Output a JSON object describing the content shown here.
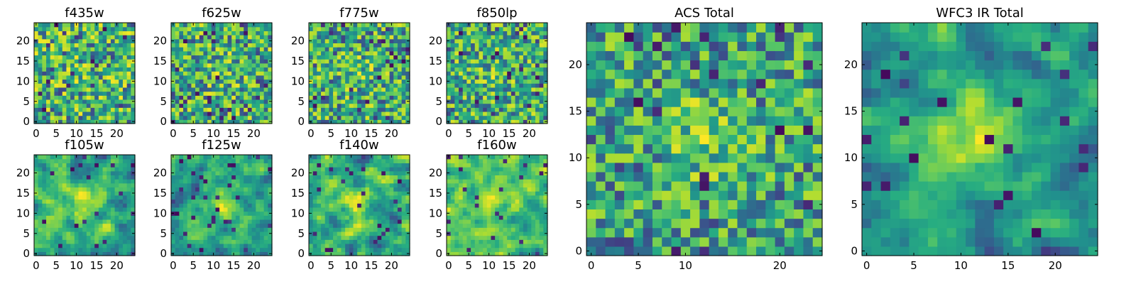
{
  "chart_data": [
    {
      "type": "heatmap",
      "title": "f435w",
      "grid_size": 25,
      "xlim": [
        0,
        24
      ],
      "ylim": [
        0,
        24
      ],
      "xticks": [
        0,
        5,
        10,
        15,
        20
      ],
      "yticks": [
        0,
        5,
        10,
        15,
        20
      ],
      "colormap": "viridis",
      "seed": 11,
      "blob": 0.05,
      "smooth": 0,
      "values": "noise-pattern"
    },
    {
      "type": "heatmap",
      "title": "f625w",
      "grid_size": 25,
      "xlim": [
        0,
        24
      ],
      "ylim": [
        0,
        24
      ],
      "xticks": [
        0,
        5,
        10,
        15,
        20
      ],
      "yticks": [
        0,
        5,
        10,
        15,
        20
      ],
      "colormap": "viridis",
      "seed": 23,
      "blob": 0.12,
      "smooth": 0,
      "values": "noise-pattern"
    },
    {
      "type": "heatmap",
      "title": "f775w",
      "grid_size": 25,
      "xlim": [
        0,
        24
      ],
      "ylim": [
        0,
        24
      ],
      "xticks": [
        0,
        5,
        10,
        15,
        20
      ],
      "yticks": [
        0,
        5,
        10,
        15,
        20
      ],
      "colormap": "viridis",
      "seed": 37,
      "blob": 0.12,
      "smooth": 0,
      "values": "noise-pattern"
    },
    {
      "type": "heatmap",
      "title": "f850lp",
      "grid_size": 25,
      "xlim": [
        0,
        24
      ],
      "ylim": [
        0,
        24
      ],
      "xticks": [
        0,
        5,
        10,
        15,
        20
      ],
      "yticks": [
        0,
        5,
        10,
        15,
        20
      ],
      "colormap": "viridis",
      "seed": 41,
      "blob": 0.12,
      "smooth": 0,
      "values": "noise-pattern"
    },
    {
      "type": "heatmap",
      "title": "f105w",
      "grid_size": 25,
      "xlim": [
        0,
        24
      ],
      "ylim": [
        0,
        24
      ],
      "xticks": [
        0,
        5,
        10,
        15,
        20
      ],
      "yticks": [
        0,
        5,
        10,
        15,
        20
      ],
      "colormap": "viridis",
      "seed": 53,
      "blob": 0.3,
      "smooth": 1,
      "values": "noise-pattern"
    },
    {
      "type": "heatmap",
      "title": "f125w",
      "grid_size": 25,
      "xlim": [
        0,
        24
      ],
      "ylim": [
        0,
        24
      ],
      "xticks": [
        0,
        5,
        10,
        15,
        20
      ],
      "yticks": [
        0,
        5,
        10,
        15,
        20
      ],
      "colormap": "viridis",
      "seed": 67,
      "blob": 0.35,
      "smooth": 1,
      "values": "noise-pattern"
    },
    {
      "type": "heatmap",
      "title": "f140w",
      "grid_size": 25,
      "xlim": [
        0,
        24
      ],
      "ylim": [
        0,
        24
      ],
      "xticks": [
        0,
        5,
        10,
        15,
        20
      ],
      "yticks": [
        0,
        5,
        10,
        15,
        20
      ],
      "colormap": "viridis",
      "seed": 71,
      "blob": 0.3,
      "smooth": 1,
      "values": "noise-pattern"
    },
    {
      "type": "heatmap",
      "title": "f160w",
      "grid_size": 25,
      "xlim": [
        0,
        24
      ],
      "ylim": [
        0,
        24
      ],
      "xticks": [
        0,
        5,
        10,
        15,
        20
      ],
      "yticks": [
        0,
        5,
        10,
        15,
        20
      ],
      "colormap": "viridis",
      "seed": 83,
      "blob": 0.3,
      "smooth": 1,
      "values": "noise-pattern"
    },
    {
      "type": "heatmap",
      "title": "ACS Total",
      "grid_size": 25,
      "xlim": [
        0,
        24
      ],
      "ylim": [
        0,
        24
      ],
      "xticks": [
        0,
        5,
        10,
        20
      ],
      "yticks": [
        0,
        5,
        10,
        15,
        20
      ],
      "colormap": "viridis",
      "seed": 97,
      "blob": 0.25,
      "smooth": 0,
      "values": "noise-pattern"
    },
    {
      "type": "heatmap",
      "title": "WFC3 IR Total",
      "grid_size": 25,
      "xlim": [
        0,
        24
      ],
      "ylim": [
        0,
        24
      ],
      "xticks": [
        0,
        5,
        10,
        15,
        20
      ],
      "yticks": [
        0,
        5,
        10,
        15,
        20
      ],
      "colormap": "viridis",
      "seed": 101,
      "blob": 0.55,
      "smooth": 1,
      "values": "noise-pattern"
    }
  ],
  "colors": {
    "viridis_low": "#440154",
    "viridis_mid": "#21918c",
    "viridis_high": "#fde725"
  }
}
